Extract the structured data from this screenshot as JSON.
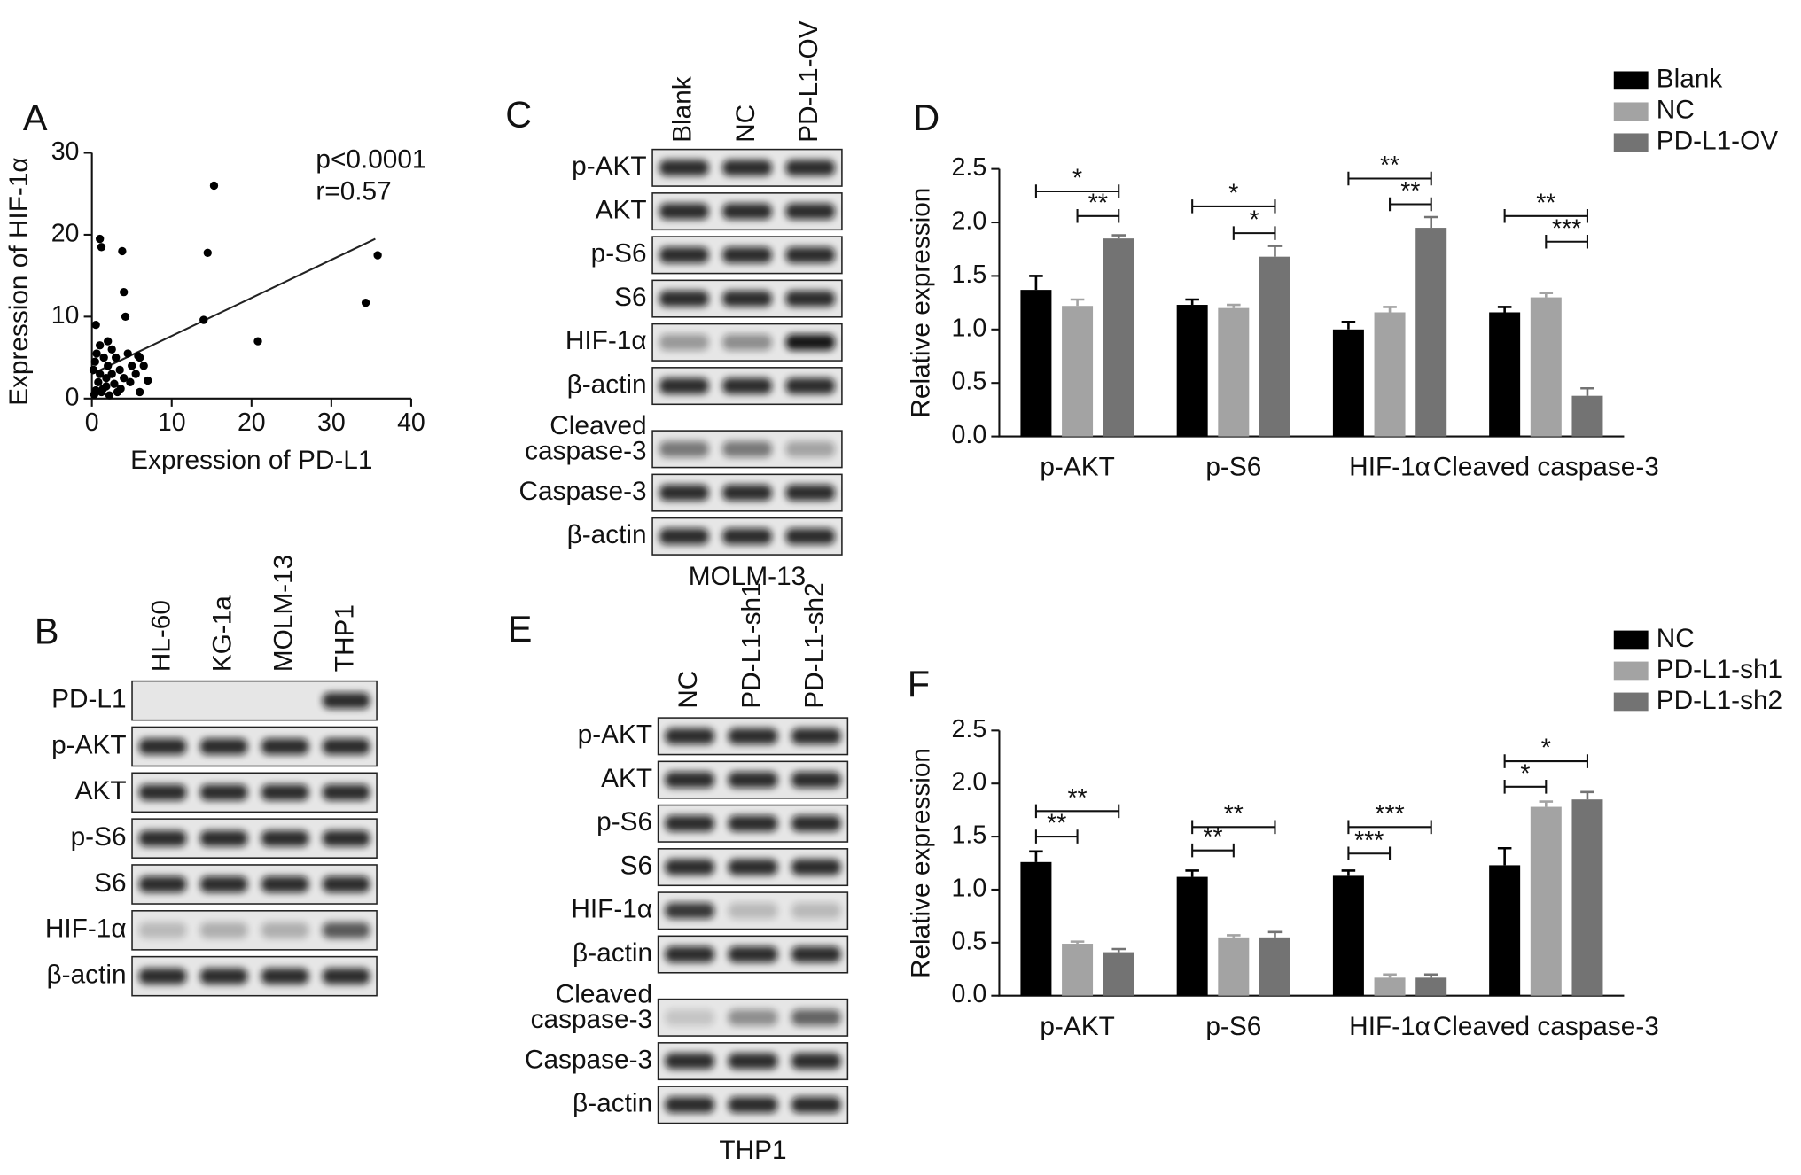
{
  "chart_data": [
    {
      "type": "scatter",
      "panel_label": "A",
      "xlabel": "Expression of PD-L1",
      "ylabel": "Expression of HIF-1α",
      "annotations": [
        "p<0.0001",
        "r=0.57"
      ],
      "color": "#000000",
      "x": [
        15.3,
        35.8,
        14.5,
        34.3,
        20.8,
        14,
        1,
        1.2,
        3.8,
        4,
        4.2,
        0.5,
        2,
        2.5,
        3,
        4.5,
        5,
        6,
        6.5,
        7,
        6,
        5.5,
        4,
        3.5,
        2.5,
        2,
        1.5,
        1,
        0.8,
        0.5,
        0.3,
        1.2,
        1.8,
        2.8,
        3.2,
        4.8,
        0.2,
        0.6,
        1,
        1.8,
        2.2,
        3.6,
        5.8,
        0.4,
        1.4
      ],
      "values": [
        26,
        17.5,
        17.8,
        11.7,
        7,
        9.6,
        19.5,
        18.5,
        18,
        13,
        10,
        9,
        7,
        6,
        5,
        5.5,
        4,
        5,
        4,
        2.2,
        0.8,
        3,
        2.5,
        3.5,
        3,
        4,
        5,
        3,
        2,
        1,
        0.5,
        0.8,
        1.5,
        1.8,
        0.8,
        2,
        3.5,
        5.5,
        6.5,
        2.5,
        0.4,
        1.2,
        5.2,
        4.5,
        1.2
      ],
      "trend": {
        "x": [
          0,
          35.5
        ],
        "values": [
          3,
          19.5
        ]
      },
      "xlim": [
        0,
        40
      ],
      "xticks": [
        0,
        10,
        20,
        30,
        40
      ],
      "ylim": [
        0,
        30
      ],
      "yticks": [
        0,
        10,
        20,
        30
      ]
    },
    {
      "type": "bar",
      "panel_label": "D",
      "ylabel": "Relative expression",
      "categories": [
        "p-AKT",
        "p-S6",
        "HIF-1α",
        "Cleaved caspase-3"
      ],
      "series": [
        {
          "name": "Blank",
          "color": "#000000",
          "values": [
            1.37,
            1.23,
            1.0,
            1.16
          ],
          "errors": [
            0.13,
            0.05,
            0.07,
            0.05
          ]
        },
        {
          "name": "NC",
          "color": "#a3a3a3",
          "values": [
            1.22,
            1.2,
            1.16,
            1.3
          ],
          "errors": [
            0.06,
            0.03,
            0.05,
            0.04
          ]
        },
        {
          "name": "PD-L1-OV",
          "color": "#737373",
          "values": [
            1.85,
            1.68,
            1.95,
            0.38
          ],
          "errors": [
            0.03,
            0.1,
            0.1,
            0.07
          ]
        }
      ],
      "significance": [
        {
          "category": 0,
          "from": 0,
          "to": 2,
          "y": 2.29,
          "label": "*"
        },
        {
          "category": 0,
          "from": 1,
          "to": 2,
          "y": 2.06,
          "label": "**"
        },
        {
          "category": 1,
          "from": 0,
          "to": 2,
          "y": 2.15,
          "label": "*"
        },
        {
          "category": 1,
          "from": 1,
          "to": 2,
          "y": 1.9,
          "label": "*"
        },
        {
          "category": 2,
          "from": 0,
          "to": 2,
          "y": 2.41,
          "label": "**"
        },
        {
          "category": 2,
          "from": 1,
          "to": 2,
          "y": 2.17,
          "label": "**"
        },
        {
          "category": 3,
          "from": 0,
          "to": 2,
          "y": 2.06,
          "label": "**"
        },
        {
          "category": 3,
          "from": 1,
          "to": 2,
          "y": 1.82,
          "label": "***"
        }
      ],
      "ylim": [
        0,
        2.5
      ],
      "yticks": [
        {
          "value": 0,
          "label": "0.0"
        },
        0.5,
        {
          "value": 1,
          "label": "1.0"
        },
        1.5,
        {
          "value": 2,
          "label": "2.0"
        },
        2.5
      ],
      "legend": "upper right"
    },
    {
      "type": "bar",
      "panel_label": "F",
      "ylabel": "Relative expression",
      "categories": [
        "p-AKT",
        "p-S6",
        "HIF-1α",
        "Cleaved caspase-3"
      ],
      "series": [
        {
          "name": "NC",
          "color": "#000000",
          "values": [
            1.26,
            1.12,
            1.13,
            1.23
          ],
          "errors": [
            0.1,
            0.06,
            0.05,
            0.16
          ]
        },
        {
          "name": "PD-L1-sh1",
          "color": "#a3a3a3",
          "values": [
            0.49,
            0.55,
            0.17,
            1.78
          ],
          "errors": [
            0.02,
            0.02,
            0.03,
            0.05
          ]
        },
        {
          "name": "PD-L1-sh2",
          "color": "#737373",
          "values": [
            0.41,
            0.55,
            0.17,
            1.85
          ],
          "errors": [
            0.03,
            0.05,
            0.03,
            0.07
          ]
        }
      ],
      "significance": [
        {
          "category": 0,
          "from": 0,
          "to": 1,
          "y": 1.5,
          "label": "**"
        },
        {
          "category": 0,
          "from": 0,
          "to": 2,
          "y": 1.74,
          "label": "**"
        },
        {
          "category": 1,
          "from": 0,
          "to": 1,
          "y": 1.37,
          "label": "**"
        },
        {
          "category": 1,
          "from": 0,
          "to": 2,
          "y": 1.59,
          "label": "**"
        },
        {
          "category": 2,
          "from": 0,
          "to": 1,
          "y": 1.34,
          "label": "***"
        },
        {
          "category": 2,
          "from": 0,
          "to": 2,
          "y": 1.59,
          "label": "***"
        },
        {
          "category": 3,
          "from": 0,
          "to": 1,
          "y": 1.97,
          "label": "*"
        },
        {
          "category": 3,
          "from": 0,
          "to": 2,
          "y": 2.21,
          "label": "*"
        }
      ],
      "ylim": [
        0,
        2.5
      ],
      "yticks": [
        {
          "value": 0,
          "label": "0.0"
        },
        0.5,
        {
          "value": 1,
          "label": "1.0"
        },
        1.5,
        {
          "value": 2,
          "label": "2.0"
        },
        2.5
      ],
      "legend": "upper right"
    }
  ],
  "blots": [
    {
      "panel_label": "B",
      "lanes": [
        "HL-60",
        "KG-1a",
        "MOLM-13",
        "THP1"
      ],
      "groups": [
        [
          "PD-L1",
          "p-AKT",
          "AKT",
          "p-S6",
          "S6",
          "HIF-1α",
          "β-actin"
        ]
      ]
    },
    {
      "panel_label": "C",
      "lanes": [
        "Blank",
        "NC",
        "PD-L1-OV"
      ],
      "groups": [
        [
          "p-AKT",
          "AKT",
          "p-S6",
          "S6",
          "HIF-1α",
          "β-actin"
        ],
        [
          [
            "Cleaved",
            "caspase-3"
          ],
          "Caspase-3",
          "β-actin"
        ]
      ],
      "cell_line": "MOLM-13"
    },
    {
      "panel_label": "E",
      "lanes": [
        "NC",
        "PD-L1-sh1",
        "PD-L1-sh2"
      ],
      "groups": [
        [
          "p-AKT",
          "AKT",
          "p-S6",
          "S6",
          "HIF-1α",
          "β-actin"
        ],
        [
          [
            "Cleaved",
            "caspase-3"
          ],
          "Caspase-3",
          "β-actin"
        ]
      ],
      "cell_line": "THP1"
    }
  ]
}
